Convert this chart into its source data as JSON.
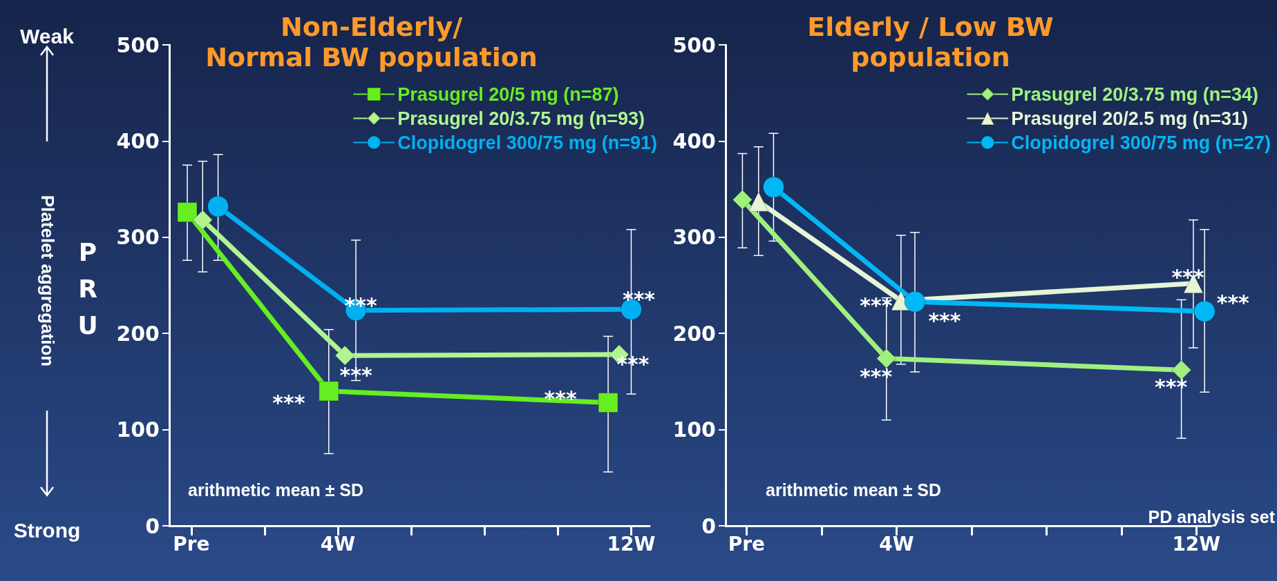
{
  "chart_data": [
    {
      "type": "line",
      "title": "Non-Elderly/\nNormal BW population",
      "ylabel": "PRU",
      "xlim": [
        -0.6,
        12.5
      ],
      "ylim": [
        0,
        500
      ],
      "yticks": [
        0,
        100,
        200,
        300,
        400,
        500
      ],
      "xticks": [
        {
          "value": 0,
          "label": "Pre"
        },
        {
          "value": 2,
          "label": null
        },
        {
          "value": 4,
          "label": "4W"
        },
        {
          "value": 6,
          "label": null
        },
        {
          "value": 8,
          "label": null
        },
        {
          "value": 10,
          "label": null
        },
        {
          "value": 12,
          "label": "12W"
        }
      ],
      "grid": false,
      "legend": "top right",
      "line_style": "solid",
      "series": [
        {
          "name": "Prasugrel 20/5 mg (n=87)",
          "color": "#66ee22",
          "marker": "square",
          "x": [
            -0.11,
            3.75,
            11.37
          ],
          "values": [
            326,
            140,
            128
          ],
          "errors": [
            [
              276,
              375
            ],
            [
              75,
              204
            ],
            [
              56,
              197
            ]
          ]
        },
        {
          "name": "Prasugrel 20/3.75 mg (n=93)",
          "color": "#b0f590",
          "marker": "diamond",
          "x": [
            0.31,
            4.19,
            11.67
          ],
          "values": [
            318,
            177,
            178
          ],
          "errors": [
            [
              264,
              379
            ],
            null,
            null
          ]
        },
        {
          "name": "Clopidogrel 300/75 mg (n=91)",
          "color": "#00b0f0",
          "marker": "circle",
          "x": [
            0.73,
            4.49,
            12.0
          ],
          "values": [
            332,
            224,
            225
          ],
          "errors": [
            [
              276,
              386
            ],
            [
              151,
              297
            ],
            [
              137,
              308
            ]
          ]
        }
      ],
      "annotations": [
        "Weak",
        "Platelet aggregation",
        "Strong",
        "arithmetic mean ± SD",
        {
          "text": "***",
          "x": 4.49,
          "y": 224
        },
        {
          "text": "***",
          "x": 12.0,
          "y": 225
        },
        {
          "text": "***",
          "x": 4.19,
          "y": 177
        },
        {
          "text": "***",
          "x": 11.67,
          "y": 178
        },
        {
          "text": "***",
          "x": 3.75,
          "y": 140
        },
        {
          "text": "***",
          "x": 11.37,
          "y": 128
        }
      ]
    },
    {
      "type": "line",
      "title": "Elderly / Low BW\npopulation",
      "xlim": [
        -0.56,
        12.4
      ],
      "ylim": [
        0,
        500
      ],
      "yticks": [
        0,
        100,
        200,
        300,
        400,
        500
      ],
      "xticks": [
        {
          "value": 0,
          "label": "Pre"
        },
        {
          "value": 2,
          "label": null
        },
        {
          "value": 4,
          "label": "4W"
        },
        {
          "value": 6,
          "label": null
        },
        {
          "value": 8,
          "label": null
        },
        {
          "value": 10,
          "label": null
        },
        {
          "value": 12,
          "label": "12W"
        }
      ],
      "grid": false,
      "legend": "top right",
      "line_style": "solid",
      "series": [
        {
          "name": "Prasugrel 20/3.75 mg (n=34)",
          "color": "#a0f080",
          "marker": "diamond",
          "x": [
            -0.11,
            3.73,
            11.6
          ],
          "values": [
            339,
            174,
            162
          ],
          "errors": [
            [
              289,
              387
            ],
            [
              110,
              237
            ],
            [
              91,
              235
            ]
          ]
        },
        {
          "name": "Prasugrel 20/2.5 mg (n=31)",
          "color": "#e6f5d6",
          "marker": "triangle",
          "x": [
            0.32,
            4.12,
            11.92
          ],
          "values": [
            337,
            234,
            252
          ],
          "errors": [
            [
              281,
              394
            ],
            [
              168,
              302
            ],
            [
              185,
              318
            ]
          ]
        },
        {
          "name": "Clopidogrel 300/75 mg (n=27)",
          "color": "#00b8f5",
          "marker": "circle",
          "x": [
            0.72,
            4.49,
            12.22
          ],
          "values": [
            352,
            233,
            223
          ],
          "errors": [
            [
              296,
              408
            ],
            [
              160,
              305
            ],
            [
              139,
              308
            ]
          ]
        }
      ],
      "annotations": [
        "arithmetic mean ± SD",
        "PD analysis set",
        {
          "text": "***",
          "x": 4.12,
          "y": 234
        },
        {
          "text": "***",
          "x": 4.49,
          "y": 233
        },
        {
          "text": "***",
          "x": 3.73,
          "y": 174
        },
        {
          "text": "***",
          "x": 11.92,
          "y": 252
        },
        {
          "text": "***",
          "x": 12.22,
          "y": 223
        },
        {
          "text": "***",
          "x": 11.6,
          "y": 162
        }
      ]
    }
  ]
}
